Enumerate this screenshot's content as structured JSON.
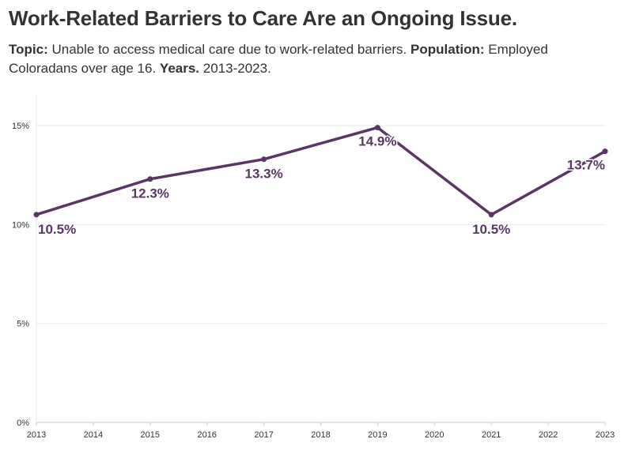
{
  "header": {
    "title": "Work-Related Barriers to Care Are an Ongoing Issue.",
    "topic_label": "Topic:",
    "topic_text": "Unable to access medical care due to work-related barriers.",
    "population_label": "Population:",
    "population_text": "Employed Coloradans over age 16.",
    "years_label": "Years.",
    "years_text": "2013-2023."
  },
  "colors": {
    "series": "#5b3566",
    "grid": "#e6e6e6",
    "axis": "#cccccc",
    "text": "#333333"
  },
  "chart_data": {
    "type": "line",
    "title": "Work-Related Barriers to Care Are an Ongoing Issue.",
    "xlabel": "",
    "ylabel": "",
    "x": [
      2013,
      2015,
      2017,
      2019,
      2021,
      2023
    ],
    "x_ticks": [
      "2013",
      "2014",
      "2015",
      "2016",
      "2017",
      "2018",
      "2019",
      "2020",
      "2021",
      "2022",
      "2023"
    ],
    "xlim": [
      2013,
      2023
    ],
    "ylim": [
      0,
      16
    ],
    "y_ticks": [
      0,
      5,
      10,
      15
    ],
    "y_tick_labels": [
      "0%",
      "5%",
      "10%",
      "15%"
    ],
    "grid": true,
    "series": [
      {
        "values": [
          10.5,
          12.3,
          13.3,
          14.9,
          10.5,
          13.7
        ],
        "labels": [
          "10.5%",
          "12.3%",
          "13.3%",
          "14.9%",
          "10.5%",
          "13.7%"
        ]
      }
    ]
  }
}
